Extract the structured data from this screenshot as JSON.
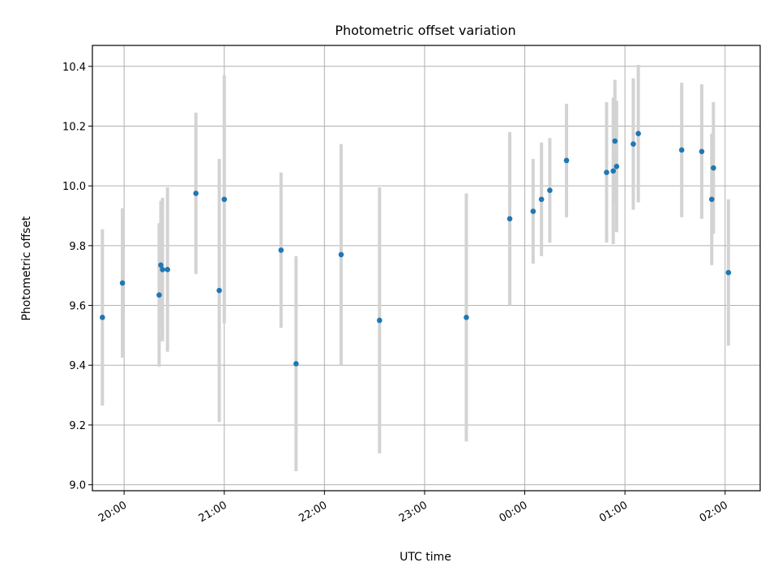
{
  "chart_data": {
    "type": "scatter",
    "title": "Photometric offset variation",
    "xlabel": "UTC time",
    "ylabel": "Photometric offset",
    "xlim": [
      "19:41",
      "02:21"
    ],
    "ylim": [
      8.98,
      10.47
    ],
    "x_ticks": [
      "20:00",
      "21:00",
      "22:00",
      "23:00",
      "00:00",
      "01:00",
      "02:00"
    ],
    "y_ticks": [
      "9.0",
      "9.2",
      "9.4",
      "9.6",
      "9.8",
      "10.0",
      "10.2",
      "10.4"
    ],
    "grid": true,
    "colors": {
      "points": "#1f77b4",
      "errorbars": "#d3d3d3",
      "grid": "#b0b0b0"
    },
    "series": [
      {
        "points": [
          {
            "x": "19:47",
            "y": 9.56,
            "yerr": 0.295
          },
          {
            "x": "19:59",
            "y": 9.675,
            "yerr": 0.25
          },
          {
            "x": "20:21",
            "y": 9.635,
            "yerr": 0.24
          },
          {
            "x": "20:22",
            "y": 9.735,
            "yerr": 0.215
          },
          {
            "x": "20:23",
            "y": 9.72,
            "yerr": 0.24
          },
          {
            "x": "20:26",
            "y": 9.72,
            "yerr": 0.275
          },
          {
            "x": "20:43",
            "y": 9.975,
            "yerr": 0.27
          },
          {
            "x": "20:57",
            "y": 9.65,
            "yerr": 0.44
          },
          {
            "x": "21:00",
            "y": 9.955,
            "yerr": 0.415
          },
          {
            "x": "21:34",
            "y": 9.785,
            "yerr": 0.26
          },
          {
            "x": "21:43",
            "y": 9.405,
            "yerr": 0.36
          },
          {
            "x": "22:10",
            "y": 9.77,
            "yerr": 0.37
          },
          {
            "x": "22:33",
            "y": 9.55,
            "yerr": 0.445
          },
          {
            "x": "23:25",
            "y": 9.56,
            "yerr": 0.415
          },
          {
            "x": "23:51",
            "y": 9.89,
            "yerr": 0.29
          },
          {
            "x": "00:05",
            "y": 9.915,
            "yerr": 0.175
          },
          {
            "x": "00:10",
            "y": 9.955,
            "yerr": 0.19
          },
          {
            "x": "00:15",
            "y": 9.985,
            "yerr": 0.175
          },
          {
            "x": "00:25",
            "y": 10.085,
            "yerr": 0.19
          },
          {
            "x": "00:49",
            "y": 10.045,
            "yerr": 0.235
          },
          {
            "x": "00:53",
            "y": 10.05,
            "yerr": 0.245
          },
          {
            "x": "00:54",
            "y": 10.15,
            "yerr": 0.205
          },
          {
            "x": "00:55",
            "y": 10.065,
            "yerr": 0.22
          },
          {
            "x": "01:05",
            "y": 10.14,
            "yerr": 0.22
          },
          {
            "x": "01:08",
            "y": 10.175,
            "yerr": 0.23
          },
          {
            "x": "01:34",
            "y": 10.12,
            "yerr": 0.225
          },
          {
            "x": "01:46",
            "y": 10.115,
            "yerr": 0.225
          },
          {
            "x": "01:52",
            "y": 9.955,
            "yerr": 0.22
          },
          {
            "x": "01:53",
            "y": 10.06,
            "yerr": 0.22
          },
          {
            "x": "02:02",
            "y": 9.71,
            "yerr": 0.245
          }
        ]
      }
    ]
  }
}
